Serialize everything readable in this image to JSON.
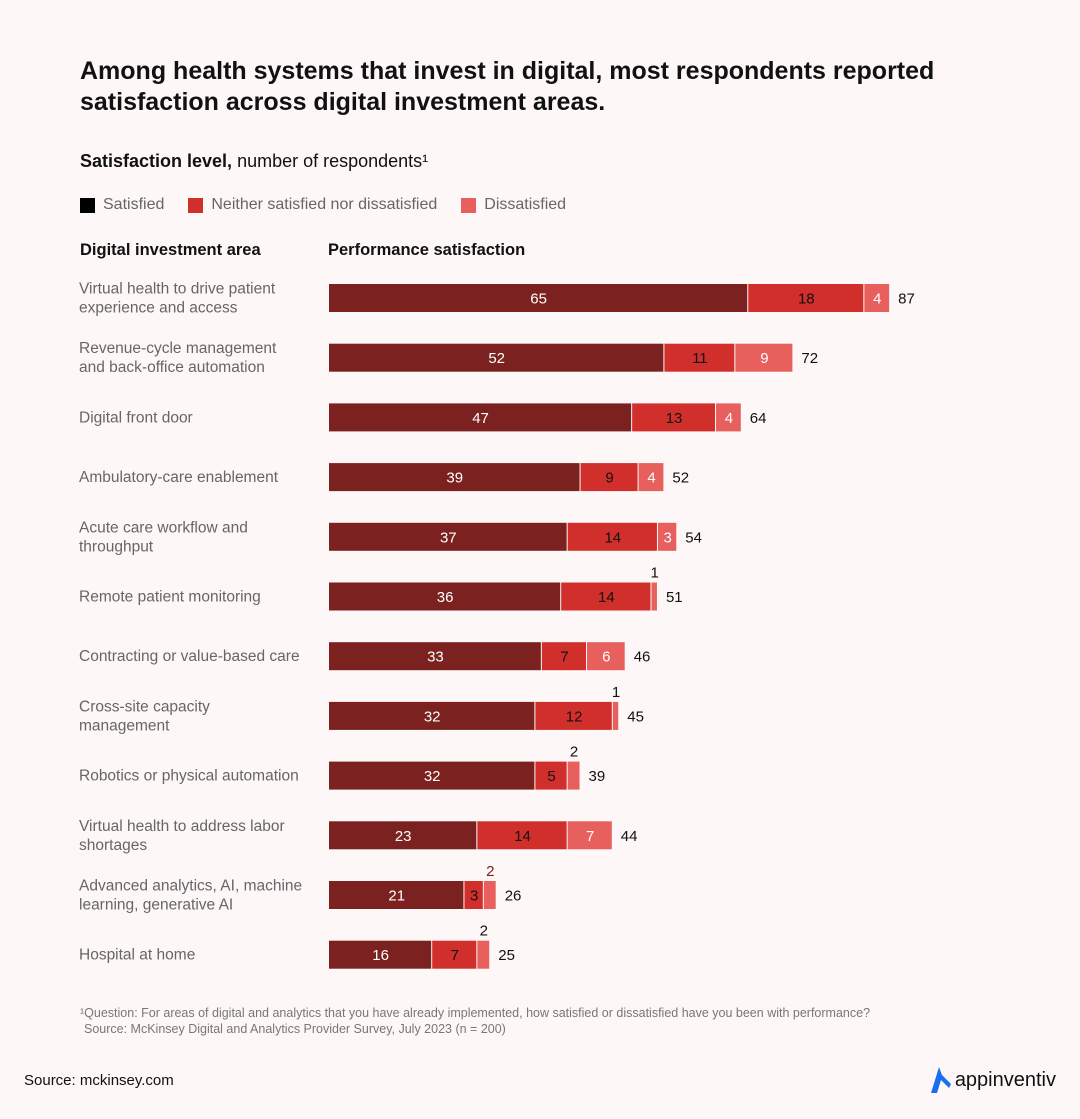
{
  "colors": {
    "satisfied": "#7b2220",
    "neither": "#d12f2c",
    "dissatisfied": "#e8605d",
    "background": "#fdf8f7"
  },
  "title": "Among health systems that invest in digital, most respondents reported satisfaction across digital investment areas.",
  "subtitle_bold": "Satisfaction level,",
  "subtitle_rest": " number of respondents¹",
  "column_headers": {
    "left": "Digital investment area",
    "right": "Performance satisfaction"
  },
  "footnote": [
    "¹Question: For areas of digital and analytics that you have already implemented, how satisfied or dissatisfied have you been with performance?",
    "Source: McKinsey Digital and Analytics Provider Survey, July 2023 (n = 200)"
  ],
  "source": "Source: mckinsey.com",
  "logo": "appinventiv",
  "chart_data": {
    "type": "bar",
    "orientation": "horizontal-stacked",
    "title": "Among health systems that invest in digital, most respondents reported satisfaction across digital investment areas.",
    "categories": [
      [
        "Virtual health to drive patient",
        "experience and access"
      ],
      [
        "Revenue-cycle management",
        "and back-office automation"
      ],
      [
        "Digital front door"
      ],
      [
        "Ambulatory-care enablement"
      ],
      [
        "Acute care workflow and",
        "throughput"
      ],
      [
        "Remote patient monitoring"
      ],
      [
        "Contracting or value-based care"
      ],
      [
        "Cross-site capacity",
        "management"
      ],
      [
        "Robotics or physical automation"
      ],
      [
        "Virtual health to address labor",
        "shortages"
      ],
      [
        "Advanced analytics, AI, machine",
        "learning, generative AI"
      ],
      [
        "Hospital at home"
      ]
    ],
    "series": [
      {
        "name": "Satisfied",
        "values": [
          65,
          52,
          47,
          39,
          37,
          36,
          33,
          32,
          32,
          23,
          21,
          16
        ]
      },
      {
        "name": "Neither satisfied nor dissatisfied",
        "values": [
          18,
          11,
          13,
          9,
          14,
          14,
          7,
          12,
          5,
          14,
          3,
          7
        ]
      },
      {
        "name": "Dissatisfied",
        "values": [
          4,
          9,
          4,
          4,
          3,
          1,
          6,
          1,
          2,
          7,
          2,
          2
        ]
      }
    ],
    "totals": [
      87,
      72,
      64,
      52,
      54,
      51,
      46,
      45,
      39,
      44,
      26,
      25
    ],
    "legend": "top-left",
    "grid": false
  }
}
